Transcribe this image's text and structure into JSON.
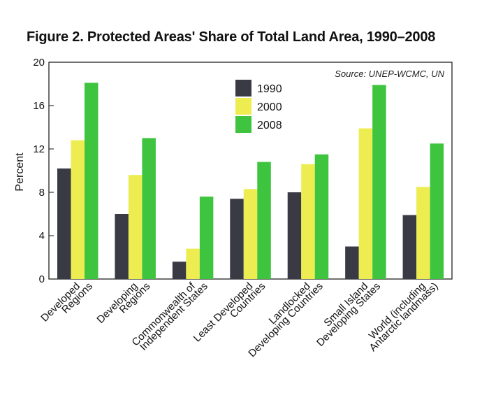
{
  "chart_data": {
    "type": "bar",
    "title": "Figure 2. Protected Areas' Share of Total Land Area, 1990–2008",
    "source": "Source: UNEP-WCMC, UN",
    "xlabel": "",
    "ylabel": "Percent",
    "ylim": [
      0,
      20
    ],
    "yticks": [
      "0",
      "4",
      "8",
      "12",
      "16",
      "20"
    ],
    "grid": false,
    "legend_position": "top-center",
    "categories": [
      [
        "Developed",
        "Regions"
      ],
      [
        "Developing",
        "Regions"
      ],
      [
        "Commonwealth of",
        "Independent States"
      ],
      [
        "Least Developed",
        "Countries"
      ],
      [
        "Landlocked",
        "Developing Countries"
      ],
      [
        "Small Island",
        "Developing States"
      ],
      [
        "World (including",
        "Antarctic landmass)"
      ]
    ],
    "series": [
      {
        "name": "1990",
        "color": "#3a3a45",
        "values": [
          10.2,
          6.0,
          1.6,
          7.4,
          8.0,
          3.0,
          5.9
        ]
      },
      {
        "name": "2000",
        "color": "#eded52",
        "values": [
          12.8,
          9.6,
          2.8,
          8.3,
          10.6,
          13.9,
          8.5
        ]
      },
      {
        "name": "2008",
        "color": "#3ec43e",
        "values": [
          18.1,
          13.0,
          7.6,
          10.8,
          11.5,
          17.9,
          12.5
        ]
      }
    ]
  }
}
